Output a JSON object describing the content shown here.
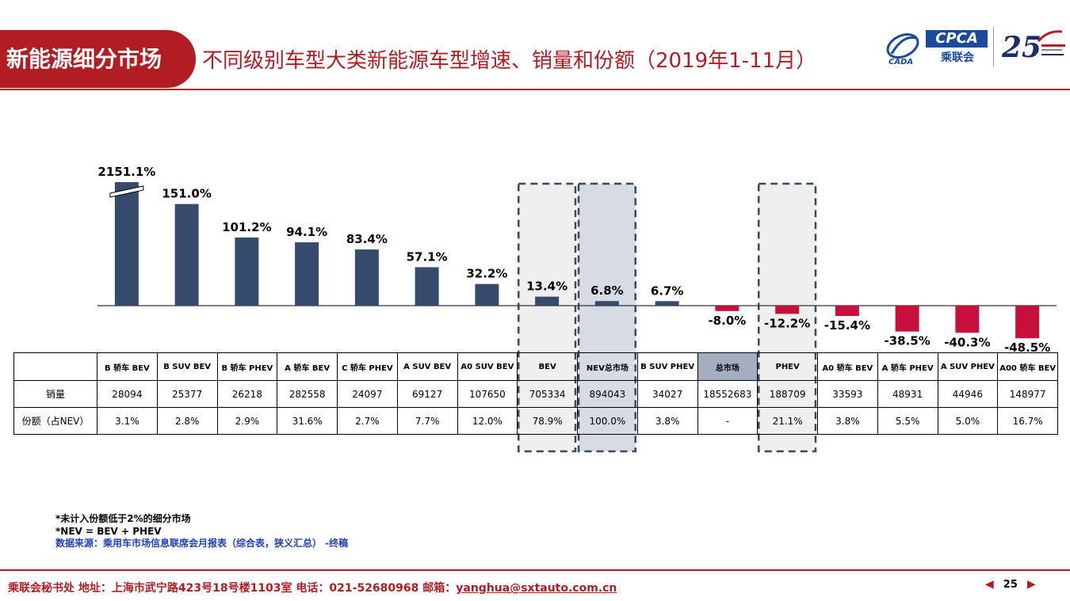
{
  "header": {
    "section": "新能源细分市场",
    "title": "不同级别车型大类新能源车型增速、销量和份额（2019年1-11月）",
    "logo_cpca": "CPCA",
    "logo_cpca_cn": "乘联会",
    "logo_cada": "CADA"
  },
  "colors": {
    "positive": "#344b6b",
    "negative": "#c8103c",
    "accent": "#b01e23"
  },
  "chart_data": {
    "type": "bar",
    "categories": [
      "B 轿车 BEV",
      "B SUV BEV",
      "B 轿车 PHEV",
      "A 轿车 BEV",
      "C 轿车 PHEV",
      "A SUV BEV",
      "A0 SUV BEV",
      "BEV",
      "NEV总市场",
      "B SUV PHEV",
      "总市场",
      "PHEV",
      "A0 轿车 BEV",
      "A 轿车 PHEV",
      "A SUV PHEV",
      "A00 轿车 BEV"
    ],
    "values": [
      2151.1,
      151.0,
      101.2,
      94.1,
      83.4,
      57.1,
      32.2,
      13.4,
      6.8,
      6.7,
      -8.0,
      -12.2,
      -15.4,
      -38.5,
      -40.3,
      -48.5
    ],
    "value_labels": [
      "2151.1%",
      "151.0%",
      "101.2%",
      "94.1%",
      "83.4%",
      "57.1%",
      "32.2%",
      "13.4%",
      "6.8%",
      "6.7%",
      "-8.0%",
      "-12.2%",
      "-15.4%",
      "-38.5%",
      "-40.3%",
      "-48.5%"
    ],
    "axis_break": "B 轿车 BEV",
    "highlighted": [
      "BEV",
      "NEV总市场",
      "PHEV"
    ],
    "table": {
      "row_labels": [
        "销量",
        "份额（占NEV）"
      ],
      "sales": [
        "28094",
        "25377",
        "26218",
        "282558",
        "24097",
        "69127",
        "107650",
        "705334",
        "894043",
        "34027",
        "18552683",
        "188709",
        "33593",
        "48931",
        "44946",
        "148977"
      ],
      "share": [
        "3.1%",
        "2.8%",
        "2.9%",
        "31.6%",
        "2.7%",
        "7.7%",
        "12.0%",
        "78.9%",
        "100.0%",
        "3.8%",
        "-",
        "21.1%",
        "3.8%",
        "5.5%",
        "5.0%",
        "16.7%"
      ]
    }
  },
  "notes": {
    "line1": "*未计入份额低于2%的细分市场",
    "line2": "*NEV = BEV + PHEV",
    "source": "数据来源：乘用车市场信息联席会月报表（综合表，狭义汇总） -终稿"
  },
  "footer": {
    "text": "乘联会秘书处   地址：上海市武宁路423号18号楼1103室  电话：021-52680968   邮箱：",
    "email": "yanghua@sxtauto.com.cn",
    "page": "25",
    "prev": "◀",
    "next": "▶"
  }
}
